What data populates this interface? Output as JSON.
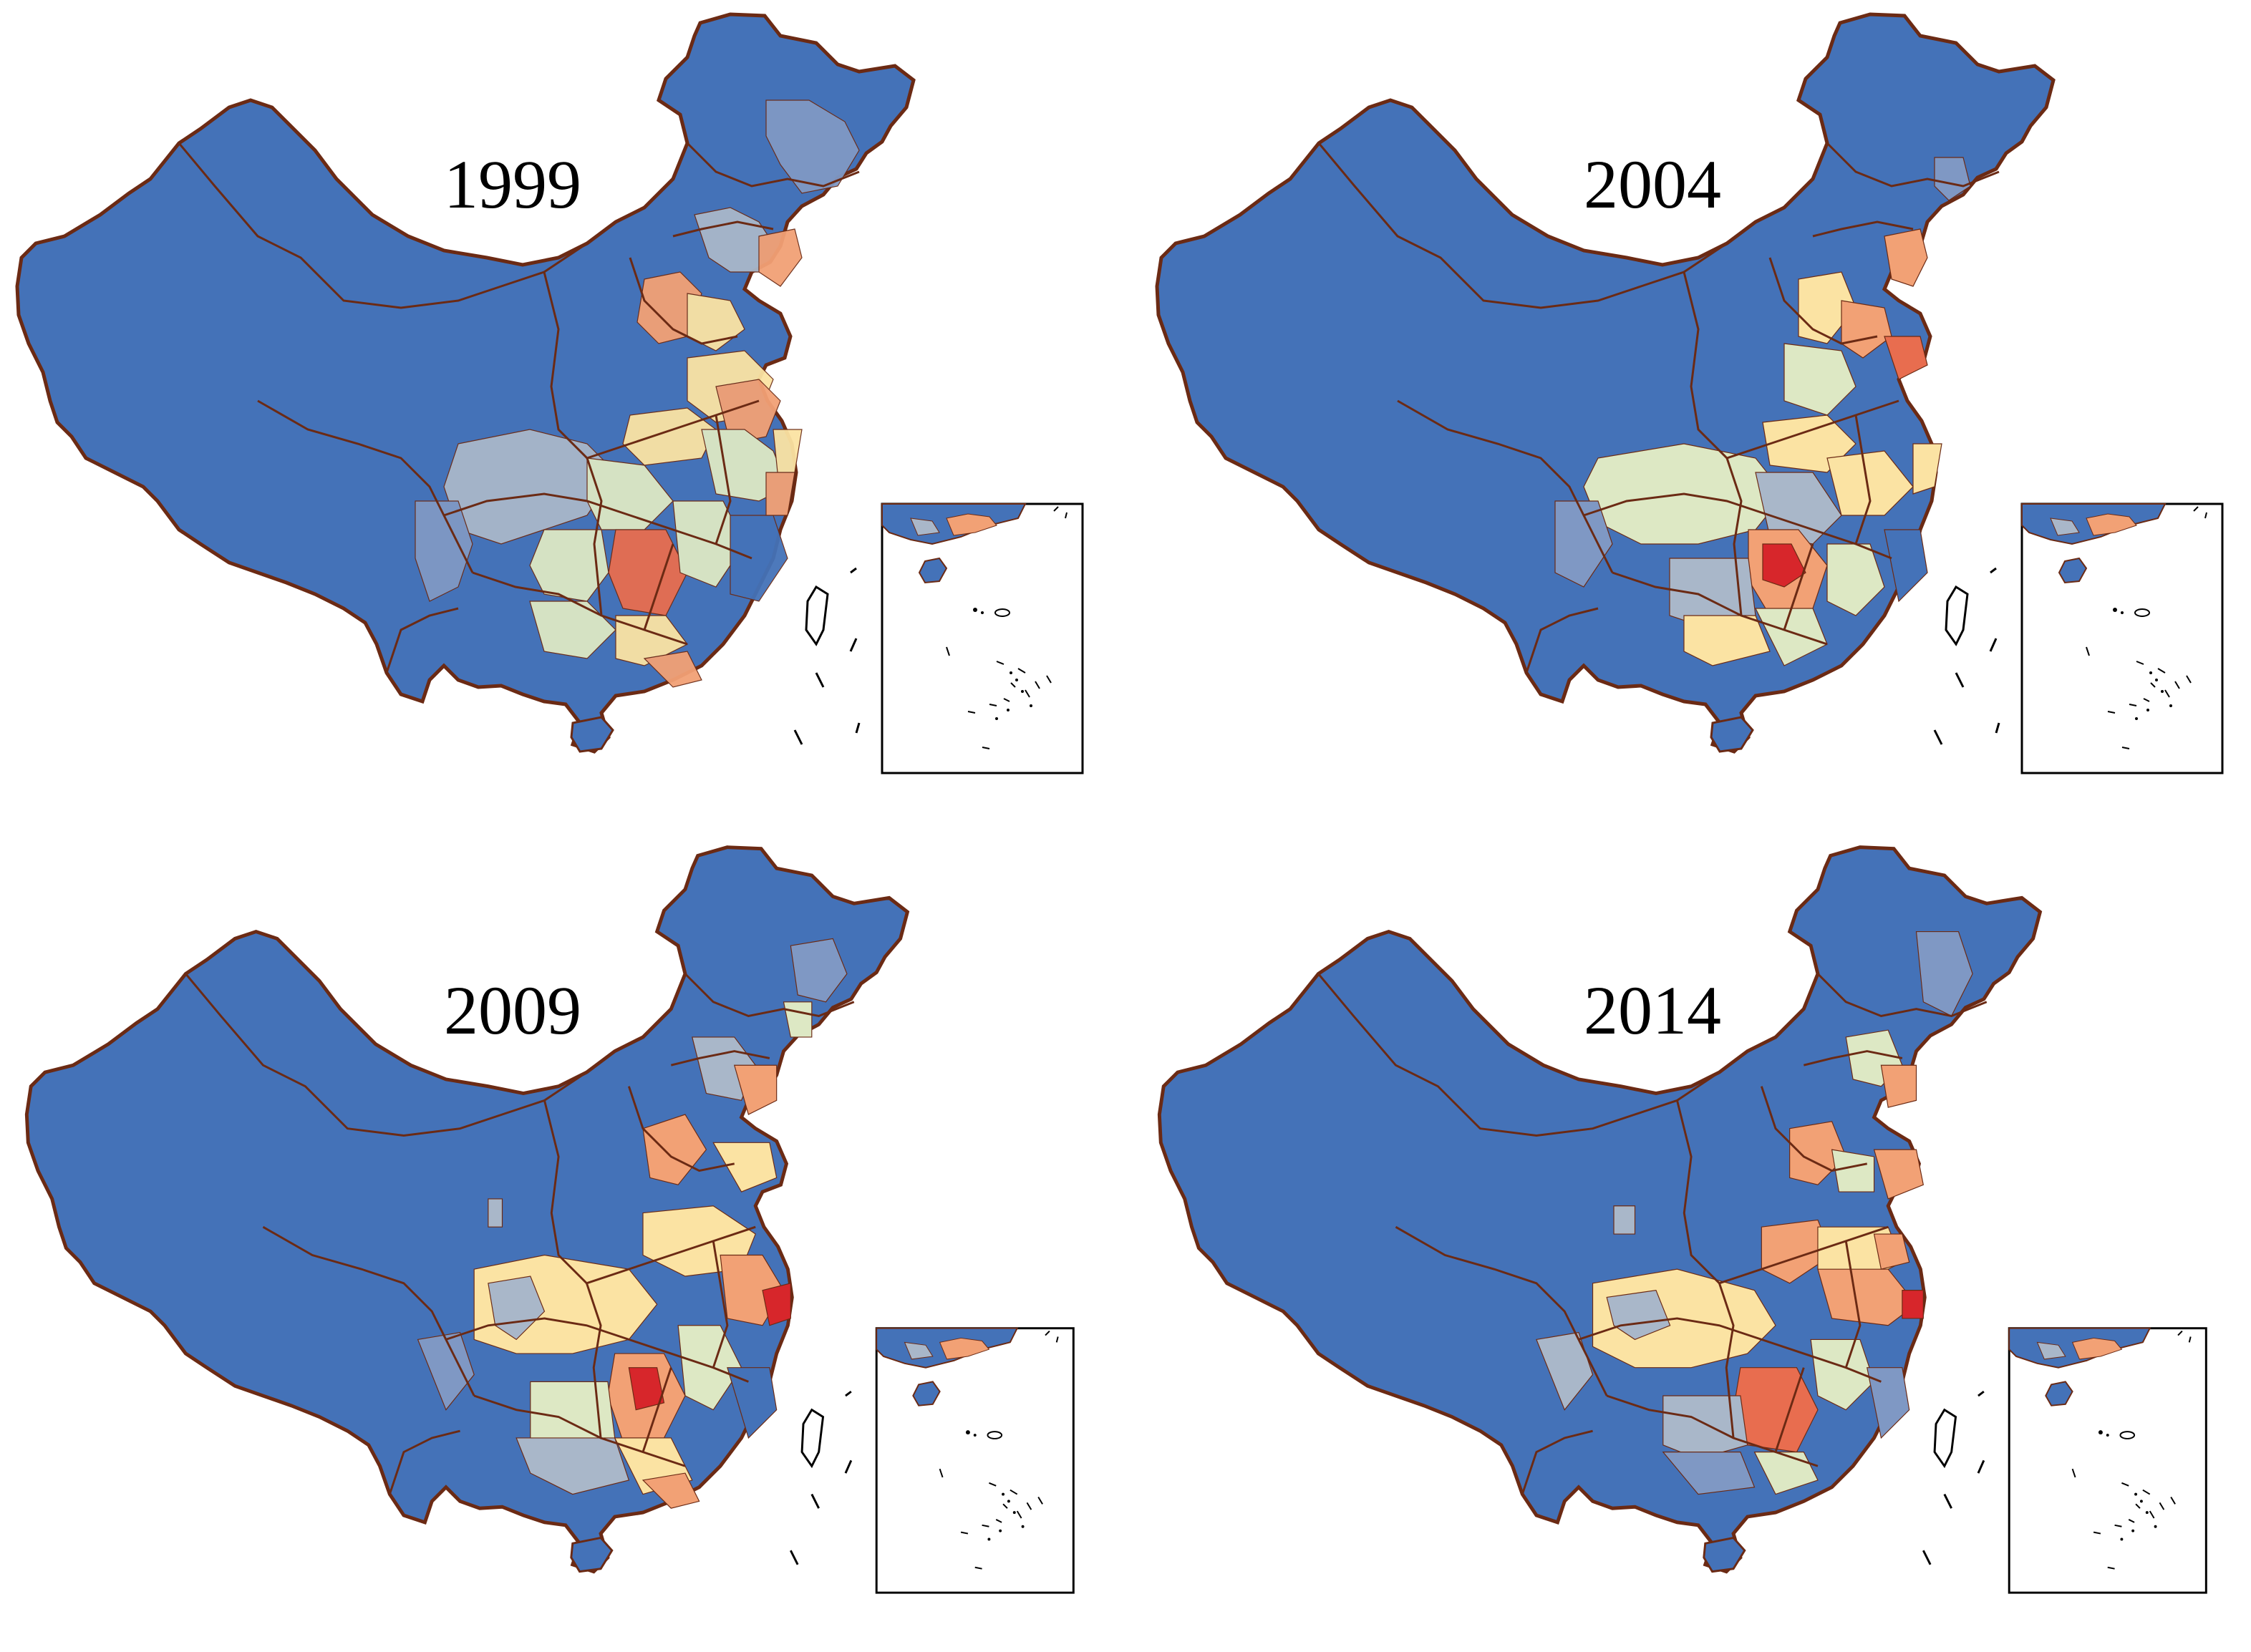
{
  "panels": [
    {
      "year": "1999"
    },
    {
      "year": "2004"
    },
    {
      "year": "2009"
    },
    {
      "year": "2014"
    }
  ],
  "colors": {
    "background": "#ffffff",
    "low": "#4472b8",
    "low_mid": "#7f98c4",
    "mid_low": "#a9b7c9",
    "mid": "#dde8c4",
    "mid_high": "#fbe3a3",
    "high": "#f2a175",
    "higher": "#e86d4f",
    "highest": "#d7262b",
    "province_border": "#6b2a14",
    "inset_frame": "#000000"
  }
}
